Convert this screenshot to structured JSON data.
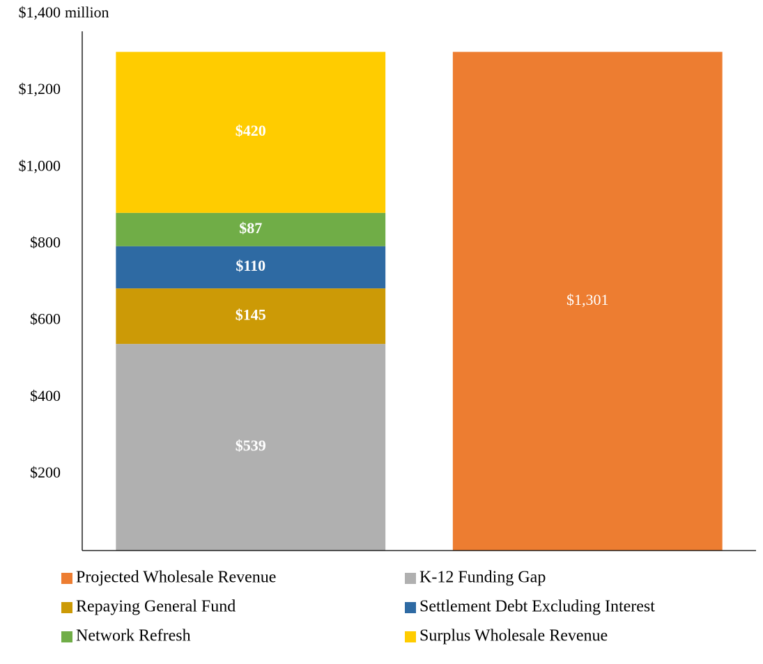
{
  "chart_data": {
    "type": "stacked_bar",
    "ylabel": "million",
    "categories": [
      null,
      null
    ],
    "ylim": [
      0,
      1400
    ],
    "yticks": [
      {
        "value": 200,
        "label": "$200"
      },
      {
        "value": 400,
        "label": "$400"
      },
      {
        "value": 600,
        "label": "$600"
      },
      {
        "value": 800,
        "label": "$800"
      },
      {
        "value": 1000,
        "label": "$1,000"
      },
      {
        "value": 1200,
        "label": "$1,200"
      },
      {
        "value": 1400,
        "label": "$1,400"
      }
    ],
    "grid": false,
    "legend": "bottom",
    "series": [
      {
        "name": "Projected Wholesale Revenue",
        "color": "#ED7D31",
        "values": [
          null,
          1301
        ],
        "value_labels": [
          null,
          "$1,301"
        ]
      },
      {
        "name": "K-12 Funding Gap",
        "color": "#B0B0B0",
        "values": [
          539,
          null
        ],
        "value_labels": [
          "$539",
          null
        ]
      },
      {
        "name": "Repaying General Fund",
        "color": "#CC9A06",
        "values": [
          145,
          null
        ],
        "value_labels": [
          "$145",
          null
        ]
      },
      {
        "name": "Settlement Debt Excluding Interest",
        "color": "#2E6AA3",
        "values": [
          110,
          null
        ],
        "value_labels": [
          "$110",
          null
        ]
      },
      {
        "name": "Network Refresh",
        "color": "#70AD47",
        "values": [
          87,
          null
        ],
        "value_labels": [
          "$87",
          null
        ]
      },
      {
        "name": "Surplus Wholesale Revenue",
        "color": "#FFCC00",
        "values": [
          420,
          null
        ],
        "value_labels": [
          "$420",
          null
        ]
      }
    ]
  }
}
